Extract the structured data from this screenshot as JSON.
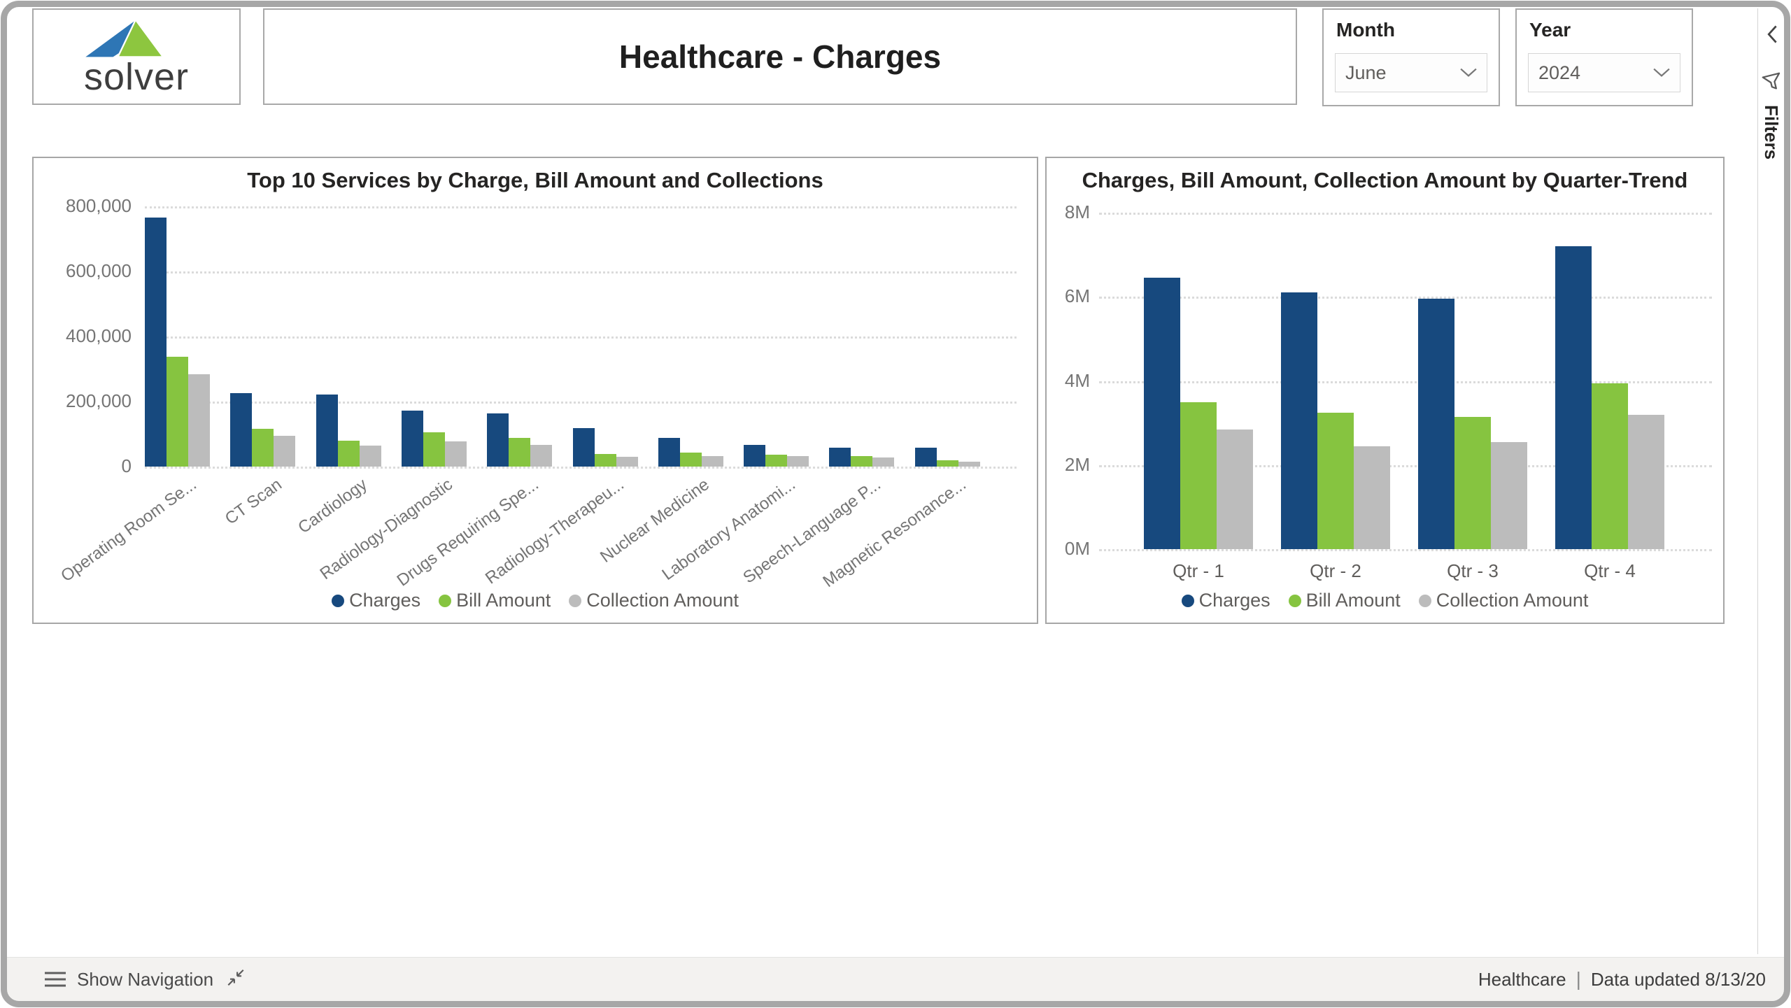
{
  "header": {
    "logo_text": "solver",
    "title": "Healthcare - Charges",
    "month_filter": {
      "label": "Month",
      "value": "June"
    },
    "year_filter": {
      "label": "Year",
      "value": "2024"
    }
  },
  "filters_pane": {
    "label": "Filters"
  },
  "icons": {
    "menu": "hamburger",
    "collapse": "diagonal-collapse-arrows",
    "filters": "funnel",
    "pane_toggle": "chevron-left",
    "dropdown": "chevron-down",
    "logo": "solver-mountain-triangles"
  },
  "colors": {
    "series_colors": [
      "#17497E",
      "#86C440",
      "#BCBCBC"
    ],
    "logo_blue": "#2E76B5",
    "logo_green": "#8DC63F",
    "frame": "#A7A7A7",
    "footer_bg": "#F3F2F0"
  },
  "footer": {
    "show_navigation": "Show Navigation",
    "report_name": "Healthcare",
    "separator": "|",
    "data_updated": "Data updated 8/13/20"
  },
  "chart_data": [
    {
      "id": "services",
      "type": "bar",
      "title": "Top 10 Services by Charge, Bill Amount and Collections",
      "categories": [
        "Operating Room Se...",
        "CT Scan",
        "Cardiology",
        "Radiology-Diagnostic",
        "Drugs Requiring Spe...",
        "Radiology-Therapeu...",
        "Nuclear Medicine",
        "Laboratory Anatomi...",
        "Speech-Language P...",
        "Magnetic Resonance..."
      ],
      "series": [
        {
          "name": "Charges",
          "values": [
            765000,
            226000,
            222000,
            172000,
            163000,
            118000,
            88000,
            67000,
            58000,
            58000
          ]
        },
        {
          "name": "Bill Amount",
          "values": [
            338000,
            116000,
            80000,
            105000,
            88000,
            38000,
            44000,
            37000,
            32000,
            20000
          ]
        },
        {
          "name": "Collection Amount",
          "values": [
            283000,
            95000,
            65000,
            77000,
            67000,
            30000,
            33000,
            32000,
            28000,
            15000
          ]
        }
      ],
      "ylim": [
        0,
        800000
      ],
      "y_ticks": [
        "800,000",
        "600,000",
        "400,000",
        "200,000",
        "0"
      ],
      "grid": "dotted-horizontal",
      "legend_position": "bottom"
    },
    {
      "id": "quarters",
      "type": "bar",
      "title": "Charges, Bill Amount, Collection Amount by Quarter-Trend",
      "categories": [
        "Qtr - 1",
        "Qtr - 2",
        "Qtr - 3",
        "Qtr - 4"
      ],
      "series": [
        {
          "name": "Charges",
          "values": [
            6450000,
            6100000,
            5950000,
            7200000
          ]
        },
        {
          "name": "Bill Amount",
          "values": [
            3500000,
            3250000,
            3150000,
            3950000
          ]
        },
        {
          "name": "Collection Amount",
          "values": [
            2850000,
            2450000,
            2550000,
            3200000
          ]
        }
      ],
      "ylim": [
        0,
        8000000
      ],
      "y_ticks": [
        "8M",
        "6M",
        "4M",
        "2M",
        "0M"
      ],
      "grid": "dotted-horizontal",
      "legend_position": "bottom"
    }
  ]
}
